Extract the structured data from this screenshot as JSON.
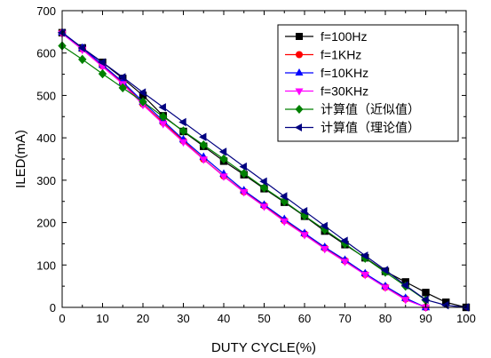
{
  "chart_data": {
    "type": "line",
    "title": "",
    "xlabel": "DUTY CYCLE(%)",
    "ylabel": "ILED(mA)",
    "xlim": [
      0,
      100
    ],
    "ylim": [
      0,
      700
    ],
    "xticks": [
      0,
      10,
      20,
      30,
      40,
      50,
      60,
      70,
      80,
      90,
      100
    ],
    "yticks": [
      0,
      100,
      200,
      300,
      400,
      500,
      600,
      700
    ],
    "grid": false,
    "legend_position": "top-right",
    "series": [
      {
        "name": "f=100Hz",
        "color": "#000000",
        "marker": "square",
        "x": [
          0,
          5,
          10,
          15,
          20,
          25,
          30,
          35,
          40,
          45,
          50,
          55,
          60,
          65,
          70,
          75,
          80,
          85,
          90,
          95,
          100
        ],
        "y": [
          648,
          612,
          578,
          540,
          500,
          452,
          415,
          380,
          345,
          313,
          280,
          248,
          215,
          180,
          148,
          117,
          85,
          60,
          35,
          12,
          0
        ]
      },
      {
        "name": "f=1KHz",
        "color": "#ff0000",
        "marker": "circle",
        "x": [
          0,
          5,
          10,
          15,
          20,
          25,
          30,
          35,
          40,
          45,
          50,
          55,
          60,
          65,
          70,
          75,
          80,
          85,
          90
        ],
        "y": [
          648,
          610,
          570,
          530,
          480,
          436,
          393,
          350,
          310,
          273,
          240,
          205,
          173,
          140,
          110,
          78,
          48,
          20,
          0
        ]
      },
      {
        "name": "f=10KHz",
        "color": "#0000ff",
        "marker": "triangle-up",
        "x": [
          0,
          5,
          10,
          15,
          20,
          25,
          30,
          35,
          40,
          45,
          50,
          55,
          60,
          65,
          70,
          75,
          80,
          85,
          90
        ],
        "y": [
          649,
          612,
          572,
          532,
          485,
          440,
          396,
          355,
          315,
          276,
          242,
          208,
          175,
          142,
          112,
          80,
          50,
          22,
          0
        ]
      },
      {
        "name": "f=30KHz",
        "color": "#ff00ff",
        "marker": "triangle-down",
        "x": [
          0,
          5,
          10,
          15,
          20,
          25,
          30,
          35,
          40,
          45,
          50,
          55,
          60,
          65,
          70,
          75,
          80,
          85,
          90
        ],
        "y": [
          646,
          608,
          568,
          527,
          478,
          433,
          390,
          349,
          309,
          272,
          238,
          203,
          171,
          138,
          108,
          77,
          47,
          18,
          0
        ]
      },
      {
        "name": "计算值（近似值）",
        "color": "#008000",
        "marker": "diamond",
        "x": [
          0,
          5,
          10,
          15,
          20,
          25,
          30,
          35,
          40,
          45,
          50,
          55,
          60,
          65,
          70,
          75,
          80,
          85,
          90
        ],
        "y": [
          617,
          585,
          551,
          518,
          485,
          450,
          416,
          383,
          350,
          316,
          282,
          250,
          216,
          183,
          150,
          116,
          83,
          50,
          17
        ]
      },
      {
        "name": "计算值（理论值）",
        "color": "#000080",
        "marker": "triangle-left",
        "x": [
          0,
          5,
          10,
          15,
          20,
          25,
          30,
          35,
          40,
          45,
          50,
          55,
          60,
          65,
          70,
          75,
          80,
          85,
          90,
          95,
          100
        ],
        "y": [
          648,
          612,
          578,
          543,
          507,
          472,
          437,
          402,
          367,
          332,
          297,
          262,
          227,
          192,
          157,
          122,
          88,
          52,
          18,
          5,
          0
        ]
      }
    ]
  }
}
